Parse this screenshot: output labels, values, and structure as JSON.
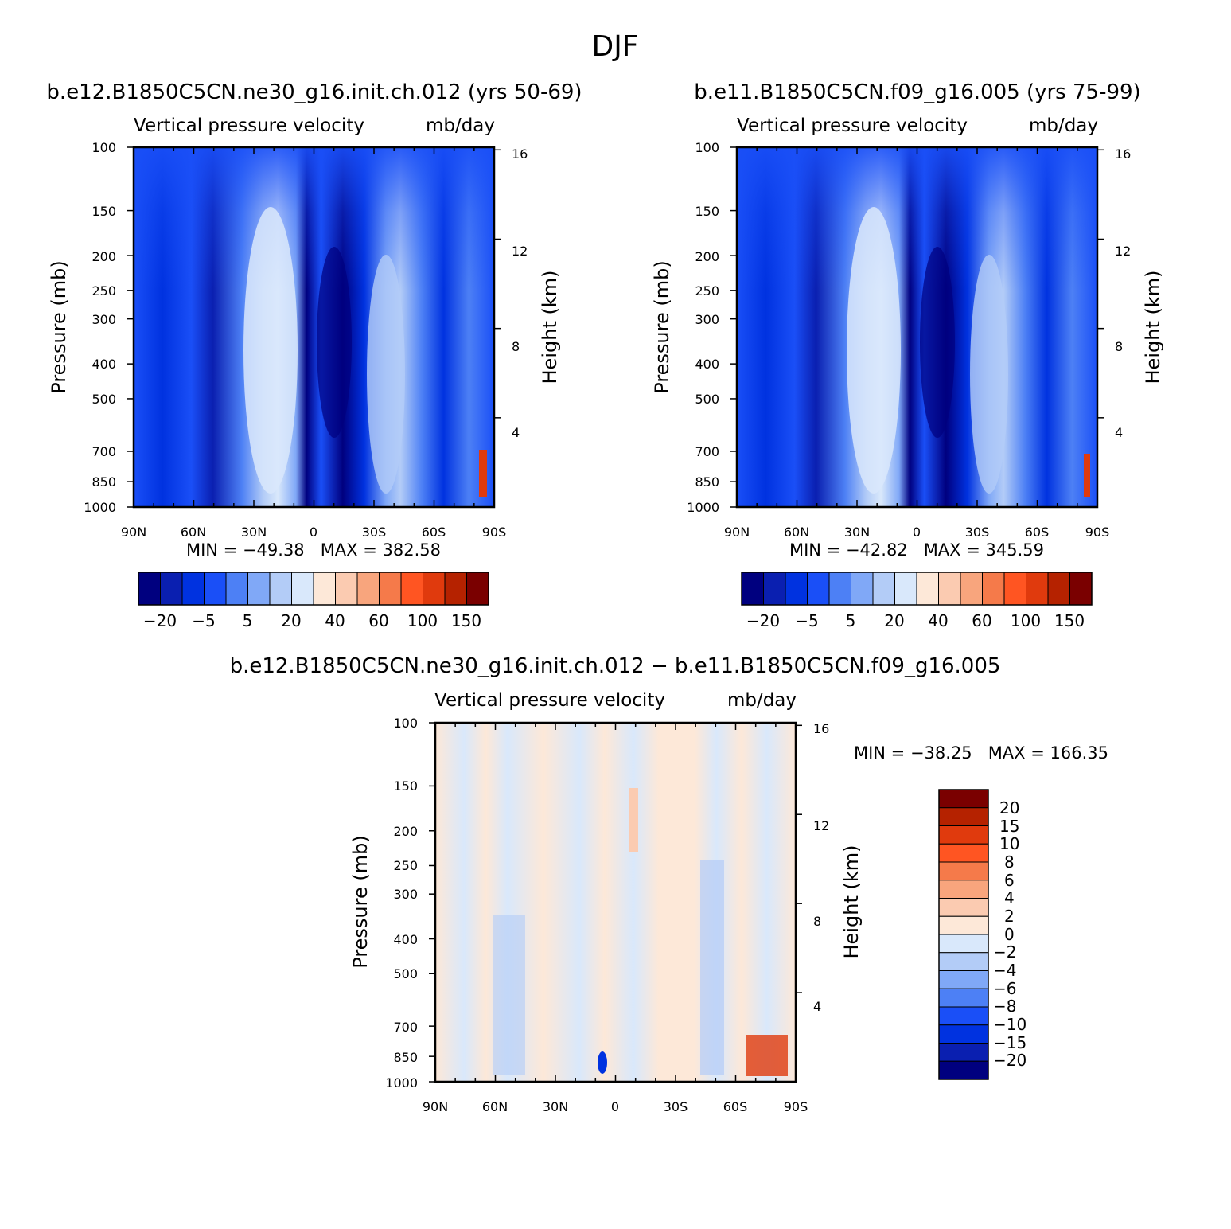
{
  "page_title": "DJF",
  "colors": {
    "abs_scale": [
      "#00007f",
      "#0a1fb0",
      "#0032e0",
      "#1a4ff7",
      "#4d80f5",
      "#80a8f7",
      "#b3ccf7",
      "#d9e8fb",
      "#fde8d8",
      "#fbcbb1",
      "#f8a57d",
      "#f57a4a",
      "#ff5522",
      "#e03a0d",
      "#b52200",
      "#7a0000"
    ],
    "diff_scale": [
      "#00007f",
      "#0a1fb0",
      "#0032e0",
      "#1a4ff7",
      "#4d80f5",
      "#80a8f7",
      "#b3ccf7",
      "#d9e8fb",
      "#fde8d8",
      "#fbcbb1",
      "#f8a57d",
      "#f57a4a",
      "#ff5522",
      "#e03a0d",
      "#b52200",
      "#7a0000"
    ]
  },
  "chart_data": [
    {
      "type": "heatmap",
      "title": "b.e12.B1850C5CN.ne30_g16.init.ch.012 (yrs 50-69)",
      "subtitle_left": "Vertical pressure velocity",
      "subtitle_right": "mb/day",
      "ylabel": "Pressure (mb)",
      "ylabel_right": "Height (km)",
      "x_ticks": [
        "90N",
        "60N",
        "30N",
        "0",
        "30S",
        "60S",
        "90S"
      ],
      "y_ticks": [
        "100",
        "150",
        "200",
        "250",
        "300",
        "400",
        "500",
        "700",
        "850",
        "1000"
      ],
      "y_right_ticks": [
        "16",
        "12",
        "8",
        "4"
      ],
      "stats": "MIN = −49.38   MAX = 382.58",
      "colorbar_labels": [
        "−20",
        "−5",
        "5",
        "20",
        "40",
        "60",
        "100",
        "150"
      ],
      "lat_range": [
        90,
        -90
      ],
      "pressure_range": [
        100,
        1000
      ],
      "scale": "log"
    },
    {
      "type": "heatmap",
      "title": "b.e11.B1850C5CN.f09_g16.005 (yrs 75-99)",
      "subtitle_left": "Vertical pressure velocity",
      "subtitle_right": "mb/day",
      "ylabel": "Pressure (mb)",
      "ylabel_right": "Height (km)",
      "x_ticks": [
        "90N",
        "60N",
        "30N",
        "0",
        "30S",
        "60S",
        "90S"
      ],
      "y_ticks": [
        "100",
        "150",
        "200",
        "250",
        "300",
        "400",
        "500",
        "700",
        "850",
        "1000"
      ],
      "y_right_ticks": [
        "16",
        "12",
        "8",
        "4"
      ],
      "stats": "MIN = −42.82   MAX = 345.59",
      "colorbar_labels": [
        "−20",
        "−5",
        "5",
        "20",
        "40",
        "60",
        "100",
        "150"
      ],
      "lat_range": [
        90,
        -90
      ],
      "pressure_range": [
        100,
        1000
      ],
      "scale": "log"
    },
    {
      "type": "heatmap",
      "title": "b.e12.B1850C5CN.ne30_g16.init.ch.012 − b.e11.B1850C5CN.f09_g16.005",
      "subtitle_left": "Vertical pressure velocity",
      "subtitle_right": "mb/day",
      "ylabel": "Pressure (mb)",
      "ylabel_right": "Height (km)",
      "x_ticks": [
        "90N",
        "60N",
        "30N",
        "0",
        "30S",
        "60S",
        "90S"
      ],
      "y_ticks": [
        "100",
        "150",
        "200",
        "250",
        "300",
        "400",
        "500",
        "700",
        "850",
        "1000"
      ],
      "y_right_ticks": [
        "16",
        "12",
        "8",
        "4"
      ],
      "stats": "MIN = −38.25   MAX = 166.35",
      "colorbar_labels": [
        "20",
        "15",
        "10",
        "8",
        "6",
        "4",
        "2",
        "0",
        "−2",
        "−4",
        "−6",
        "−8",
        "−10",
        "−15",
        "−20"
      ],
      "lat_range": [
        90,
        -90
      ],
      "pressure_range": [
        100,
        1000
      ],
      "scale": "log"
    }
  ]
}
